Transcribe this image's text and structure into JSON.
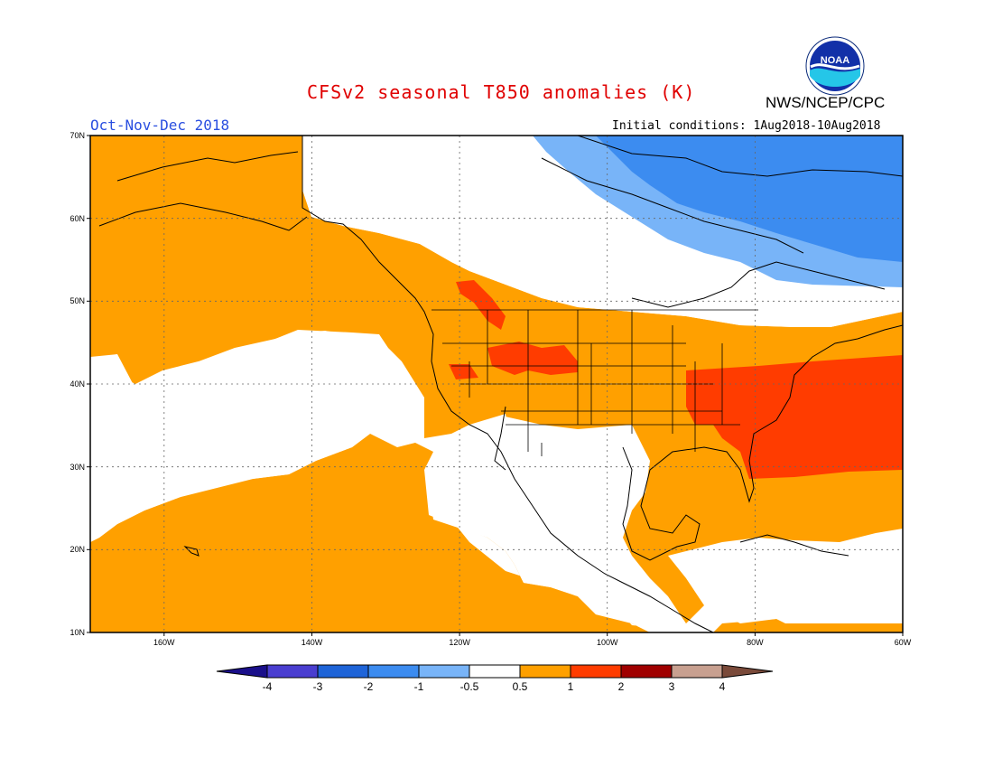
{
  "title": "CFSv2 seasonal T850 anomalies (K)",
  "period": "Oct-Nov-Dec 2018",
  "initial_conditions": "Initial conditions: 1Aug2018-10Aug2018",
  "agency": "NWS/NCEP/CPC",
  "logo_text": "NOAA",
  "map": {
    "lat_labels": [
      "70N",
      "60N",
      "50N",
      "40N",
      "30N",
      "20N",
      "10N"
    ],
    "lon_labels": [
      "160W",
      "140W",
      "120W",
      "100W",
      "80W",
      "60W"
    ],
    "lat_range": [
      10,
      70
    ],
    "lon_range": [
      -170,
      -60
    ]
  },
  "legend": {
    "labels": [
      "-4",
      "-3",
      "-2",
      "-1",
      "-0.5",
      "0.5",
      "1",
      "2",
      "3",
      "4"
    ],
    "colors": [
      "#1a0f8a",
      "#4a3ed0",
      "#1e64d8",
      "#3c8cf0",
      "#78b4f8",
      "#ffffff",
      "#ffa000",
      "#ff3c00",
      "#a00000",
      "#c8a090",
      "#7a4a3a"
    ]
  },
  "colors": {
    "warm_05_1": "#ffa000",
    "warm_1_2": "#ff3c00",
    "cool_05_1": "#78b4f8",
    "cool_1_2": "#3c8cf0",
    "title": "#e00000",
    "period": "#2a4fe0"
  }
}
